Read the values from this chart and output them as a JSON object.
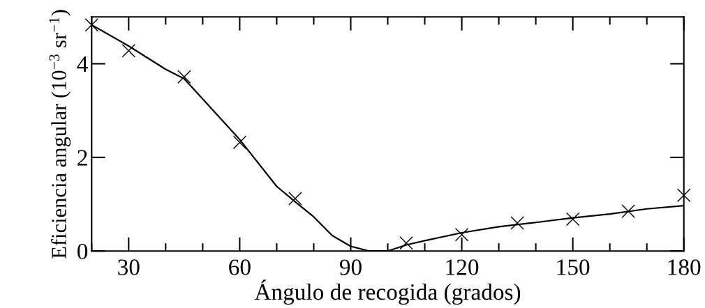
{
  "chart_data": {
    "type": "line",
    "xlabel": "Ángulo de recogida (grados)",
    "ylabel": "Eficiencia angular (10$^{−3}$ sr$^{−1}$)",
    "xlim": [
      20,
      180
    ],
    "xticks": [
      30,
      60,
      90,
      120,
      150,
      180
    ],
    "ylim": [
      0,
      5
    ],
    "yticks": [
      0,
      2,
      4
    ],
    "grid": false,
    "legend": false,
    "series": [
      {
        "type": "scatter",
        "marker": "cross",
        "color": "#000000",
        "x": [
          20,
          30,
          45,
          60,
          75,
          105,
          120,
          135,
          150,
          165,
          180
        ],
        "values": [
          4.83,
          4.28,
          3.72,
          2.32,
          1.12,
          0.17,
          0.35,
          0.6,
          0.68,
          0.85,
          1.19
        ]
      },
      {
        "marker": "none",
        "line_style": "solid",
        "color": "#000000",
        "x": [
          20,
          30,
          40,
          45,
          50,
          60,
          70,
          75,
          80,
          85,
          90,
          95,
          100,
          105,
          110,
          120,
          130,
          140,
          150,
          160,
          170,
          180
        ],
        "values": [
          4.83,
          4.38,
          3.88,
          3.68,
          3.25,
          2.38,
          1.38,
          1.05,
          0.73,
          0.33,
          0.1,
          0.0,
          0.0,
          0.13,
          0.22,
          0.39,
          0.52,
          0.61,
          0.71,
          0.79,
          0.9,
          0.97
        ]
      }
    ]
  }
}
